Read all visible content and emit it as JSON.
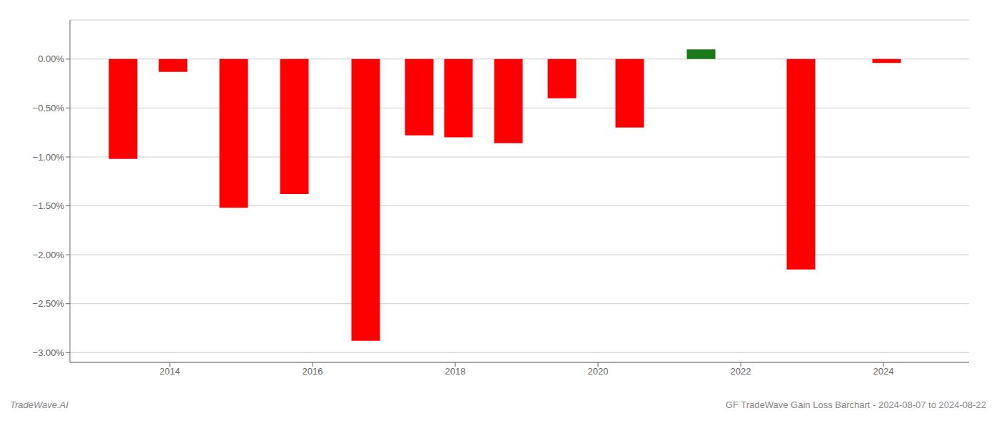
{
  "chart_data": {
    "type": "bar",
    "x": [
      2013.35,
      2014.05,
      2014.9,
      2015.75,
      2016.75,
      2017.5,
      2018.05,
      2018.75,
      2019.5,
      2020.45,
      2021.45,
      2022.85,
      2024.05
    ],
    "values": [
      -1.02,
      -0.13,
      -1.52,
      -1.38,
      -2.88,
      -0.78,
      -0.8,
      -0.86,
      -0.4,
      -0.7,
      0.1,
      -2.15,
      -0.04
    ],
    "colors": [
      "#ff0000",
      "#ff0000",
      "#ff0000",
      "#ff0000",
      "#ff0000",
      "#ff0000",
      "#ff0000",
      "#ff0000",
      "#ff0000",
      "#ff0000",
      "#1a7a1a",
      "#ff0000",
      "#ff0000"
    ],
    "xlim": [
      2012.6,
      2025.2
    ],
    "xticks": [
      2014,
      2016,
      2018,
      2020,
      2022,
      2024
    ],
    "ylim": [
      -3.1,
      0.4
    ],
    "yticks": [
      {
        "value": 0.0,
        "label": "0.00%"
      },
      {
        "value": -0.5,
        "label": "−0.50%"
      },
      {
        "value": -1.0,
        "label": "−1.00%"
      },
      {
        "value": -1.5,
        "label": "−1.50%"
      },
      {
        "value": -2.0,
        "label": "−2.00%"
      },
      {
        "value": -2.5,
        "label": "−2.50%"
      },
      {
        "value": -3.0,
        "label": "−3.00%"
      }
    ],
    "grid": "y",
    "annotations": [
      "TradeWave.AI",
      "GF TradeWave Gain Loss Barchart - 2024-08-07 to 2024-08-22"
    ]
  }
}
